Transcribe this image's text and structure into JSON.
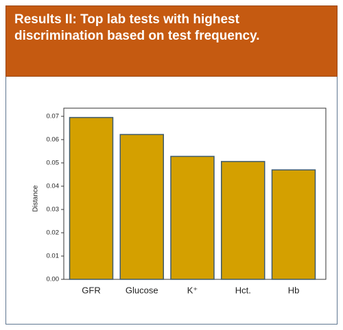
{
  "chart_data": {
    "type": "bar",
    "title": "Results II: Top lab tests with highest discrimination based on test frequency.",
    "y_label": "Distance",
    "categories": [
      "GFR",
      "Glucose",
      "K⁺",
      "Hct.",
      "Hb"
    ],
    "values": [
      0.0695,
      0.0622,
      0.0528,
      0.0506,
      0.047
    ],
    "color": "#d4a000",
    "ylim": [
      0,
      0.0735
    ],
    "yticks": [
      {
        "value": 0,
        "label": "0.00"
      },
      {
        "value": 0.01,
        "label": "0.01"
      },
      {
        "value": 0.02,
        "label": "0.02"
      },
      {
        "value": 0.03,
        "label": "0.03"
      },
      {
        "value": 0.04,
        "label": "0.04"
      },
      {
        "value": 0.05,
        "label": "0.05"
      },
      {
        "value": 0.06,
        "label": "0.06"
      },
      {
        "value": 0.07,
        "label": "0.07"
      }
    ]
  }
}
